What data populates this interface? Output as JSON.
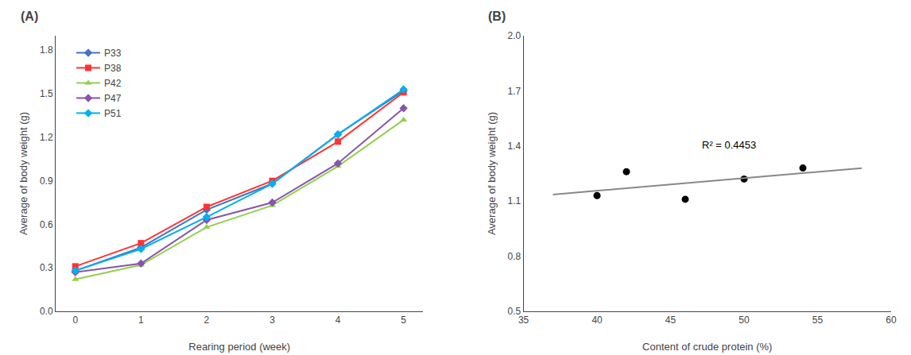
{
  "chart_data": [
    {
      "type": "line",
      "title": "(A)",
      "x_label": "Rearing period (week)",
      "y_label": "Average of body weight (g)",
      "x": [
        0,
        1,
        2,
        3,
        4,
        5
      ],
      "series": [
        {
          "name": "P33",
          "color": "#4472C4",
          "marker": "diamond",
          "values": [
            0.28,
            0.44,
            0.7,
            0.88,
            1.22,
            1.52
          ]
        },
        {
          "name": "P38",
          "color": "#FF3333",
          "marker": "square",
          "values": [
            0.31,
            0.47,
            0.72,
            0.9,
            1.17,
            1.51
          ]
        },
        {
          "name": "P42",
          "color": "#92D050",
          "marker": "triangle-up",
          "values": [
            0.22,
            0.32,
            0.58,
            0.73,
            1.0,
            1.32
          ]
        },
        {
          "name": "P47",
          "color": "#8855AA",
          "marker": "diamond",
          "values": [
            0.27,
            0.33,
            0.63,
            0.75,
            1.02,
            1.4
          ]
        },
        {
          "name": "P51",
          "color": "#00B0F0",
          "marker": "diamond",
          "values": [
            0.28,
            0.43,
            0.65,
            0.88,
            1.22,
            1.53
          ]
        }
      ],
      "xlim": [
        -0.3,
        5.3
      ],
      "ylim": [
        0.0,
        1.9
      ],
      "xticks": [
        0,
        1,
        2,
        3,
        4,
        5
      ],
      "yticks": [
        {
          "value": 0.0,
          "label": "0.0"
        },
        0.3,
        0.6,
        0.9,
        1.2,
        1.5,
        1.8
      ],
      "grid": false,
      "legend": "upper left"
    },
    {
      "type": "scatter",
      "title": "(B)",
      "x_label": "Content of crude protein (%)",
      "y_label": "Average of body weight (g)",
      "series": [
        {
          "type": "scatter",
          "color": "#000000",
          "marker": "circle",
          "x": [
            40,
            42,
            46,
            50,
            54
          ],
          "values": [
            1.13,
            1.26,
            1.11,
            1.22,
            1.28
          ]
        },
        {
          "type": "line",
          "color": "#888888",
          "x": [
            37,
            58
          ],
          "values": [
            1.1355182927,
            1.2795731707
          ]
        }
      ],
      "annotations": [
        {
          "text": "R² = 0.4453",
          "x": 47.0,
          "y": 1.365
        }
      ],
      "xlim": [
        35,
        60
      ],
      "ylim": [
        0.5,
        2.0
      ],
      "xticks": [
        35,
        40,
        45,
        50,
        55,
        60
      ],
      "yticks": [
        0.5,
        0.8,
        1.1,
        1.4,
        1.7,
        {
          "value": 2.0,
          "label": "2.0"
        }
      ],
      "grid": false
    }
  ]
}
